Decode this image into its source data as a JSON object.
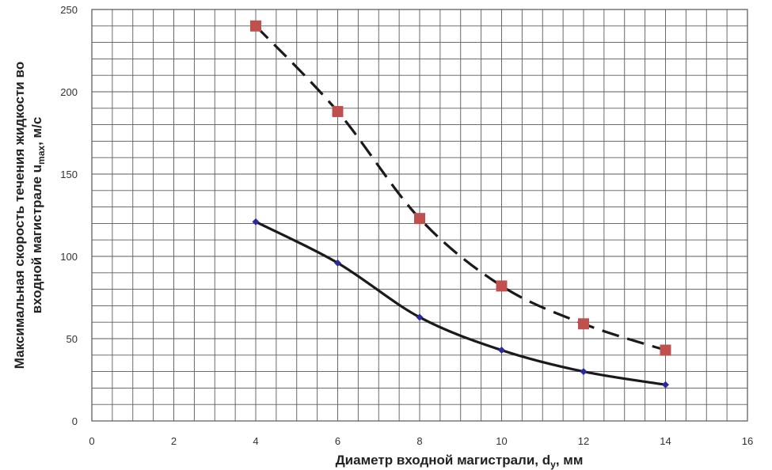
{
  "chart_data": {
    "type": "line",
    "xlabel": {
      "main": "Диаметр входной магистрали, d",
      "sub": "у",
      "suffix": ", мм"
    },
    "ylabel": {
      "line1": "Максимальная скорость течения жидкости во",
      "line2_main": "входной магистрале u",
      "line2_sub": "max",
      "line2_suffix": ", м/с"
    },
    "xlim": [
      0,
      16
    ],
    "ylim": [
      0,
      250
    ],
    "x_ticks": [
      "0",
      "2",
      "4",
      "6",
      "8",
      "10",
      "12",
      "14",
      "16"
    ],
    "y_ticks": [
      "0",
      "50",
      "100",
      "150",
      "200",
      "250"
    ],
    "grid": true,
    "series": [
      {
        "style": "solid",
        "marker": "diamond",
        "line_color": "#1a1a1a",
        "marker_color": "#2a2aa0",
        "x": [
          4,
          6,
          8,
          10,
          12,
          14
        ],
        "y": [
          121,
          96,
          63,
          43,
          30,
          22
        ]
      },
      {
        "style": "dashed",
        "marker": "square",
        "line_color": "#1a1a1a",
        "marker_color": "#c0504d",
        "x": [
          4,
          6,
          8,
          10,
          12,
          14
        ],
        "y": [
          240,
          188,
          123,
          82,
          59,
          43
        ]
      }
    ]
  }
}
